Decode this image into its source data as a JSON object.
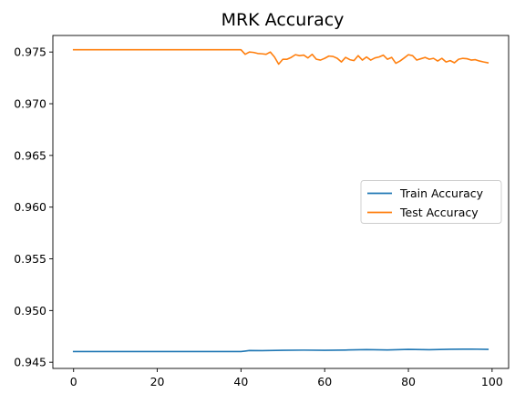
{
  "chart_data": {
    "type": "line",
    "title": "MRK Accuracy",
    "xlabel": "",
    "ylabel": "",
    "xlim": [
      -4.95,
      103.95
    ],
    "ylim": [
      0.9444,
      0.9766
    ],
    "xticks": [
      0,
      20,
      40,
      60,
      80,
      100
    ],
    "xtick_labels": [
      "0",
      "20",
      "40",
      "60",
      "80",
      "100"
    ],
    "yticks": [
      0.945,
      0.95,
      0.955,
      0.96,
      0.965,
      0.97,
      0.975
    ],
    "ytick_labels": [
      "0.945",
      "0.950",
      "0.955",
      "0.960",
      "0.965",
      "0.970",
      "0.975"
    ],
    "grid": false,
    "legend": "center-right",
    "series": [
      {
        "name": "Train Accuracy",
        "color": "#1f77b4",
        "x": [
          0,
          10,
          20,
          30,
          40,
          41,
          42,
          45,
          50,
          55,
          60,
          65,
          70,
          75,
          80,
          85,
          90,
          95,
          99
        ],
        "y": [
          0.94603,
          0.94603,
          0.94603,
          0.94603,
          0.94603,
          0.94608,
          0.94613,
          0.94612,
          0.94615,
          0.94617,
          0.94615,
          0.94618,
          0.94622,
          0.94619,
          0.94624,
          0.94621,
          0.94625,
          0.94627,
          0.94624
        ]
      },
      {
        "name": "Test Accuracy",
        "color": "#ff7f0e",
        "x": [
          0,
          10,
          20,
          30,
          40,
          41,
          42,
          43,
          44,
          45,
          46,
          47,
          48,
          49,
          50,
          51,
          52,
          53,
          54,
          55,
          56,
          57,
          58,
          59,
          60,
          61,
          62,
          63,
          64,
          65,
          66,
          67,
          68,
          69,
          70,
          71,
          72,
          73,
          74,
          75,
          76,
          77,
          78,
          79,
          80,
          81,
          82,
          83,
          84,
          85,
          86,
          87,
          88,
          89,
          90,
          91,
          92,
          93,
          94,
          95,
          96,
          97,
          98,
          99
        ],
        "y": [
          0.97522,
          0.97522,
          0.97522,
          0.97522,
          0.97522,
          0.97478,
          0.975,
          0.97496,
          0.97486,
          0.97483,
          0.97478,
          0.975,
          0.97452,
          0.97383,
          0.9743,
          0.9743,
          0.97448,
          0.97474,
          0.97465,
          0.9747,
          0.97443,
          0.97478,
          0.9743,
          0.97422,
          0.97439,
          0.97461,
          0.97457,
          0.97439,
          0.97404,
          0.97448,
          0.97426,
          0.97417,
          0.97465,
          0.97422,
          0.97452,
          0.97422,
          0.97443,
          0.97452,
          0.9747,
          0.9743,
          0.97448,
          0.97391,
          0.97413,
          0.97443,
          0.97474,
          0.97465,
          0.97422,
          0.97435,
          0.97448,
          0.9743,
          0.97439,
          0.97413,
          0.97439,
          0.97404,
          0.97417,
          0.97396,
          0.9743,
          0.97439,
          0.97435,
          0.97422,
          0.97426,
          0.97413,
          0.97404,
          0.97396
        ]
      }
    ]
  }
}
